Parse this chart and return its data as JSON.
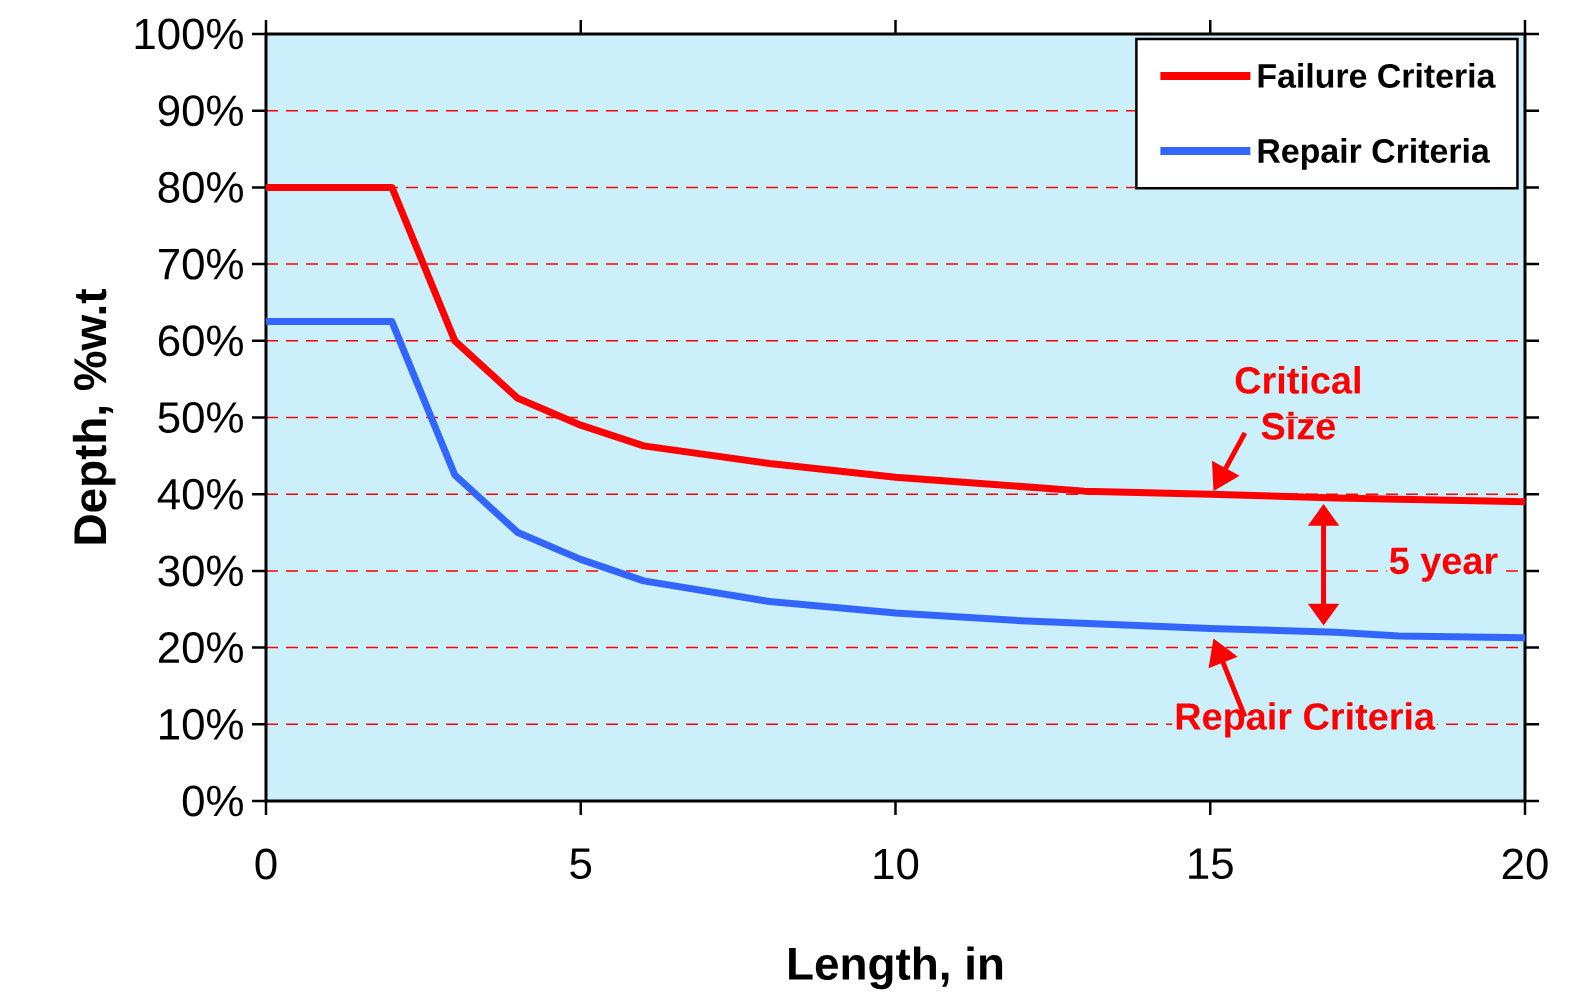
{
  "chart_data": {
    "type": "line",
    "xlabel": "Length, in",
    "ylabel": "Depth, %w.t",
    "xlim": [
      0,
      20
    ],
    "xticks": [
      0,
      5,
      10,
      15,
      20
    ],
    "ylim": [
      0,
      100
    ],
    "yticks": [
      {
        "value": 0,
        "label": "0%"
      },
      {
        "value": 10,
        "label": "10%"
      },
      {
        "value": 20,
        "label": "20%"
      },
      {
        "value": 30,
        "label": "30%"
      },
      {
        "value": 40,
        "label": "40%"
      },
      {
        "value": 50,
        "label": "50%"
      },
      {
        "value": 60,
        "label": "60%"
      },
      {
        "value": 70,
        "label": "70%"
      },
      {
        "value": 80,
        "label": "80%"
      },
      {
        "value": 90,
        "label": "90%"
      },
      {
        "value": 100,
        "label": "100%"
      }
    ],
    "grid": "y",
    "legend": "top right",
    "marker": "none",
    "line_style": "solid",
    "series": [
      {
        "name": "Failure Criteria",
        "color": "#ff0000",
        "x": [
          0,
          2,
          3,
          4,
          5,
          6,
          8,
          10,
          12,
          13,
          15,
          17,
          20
        ],
        "values": [
          80,
          80,
          60,
          52.5,
          49,
          46.3,
          44,
          42.2,
          41,
          40.4,
          40,
          39.5,
          39
        ]
      },
      {
        "name": "Repair Criteria",
        "color": "#3366ff",
        "x": [
          0,
          2,
          3,
          4,
          5,
          6,
          8,
          10,
          12,
          15,
          17,
          18,
          20
        ],
        "values": [
          62.5,
          62.5,
          42.5,
          35,
          31.5,
          28.7,
          26,
          24.5,
          23.5,
          22.5,
          22,
          21.5,
          21.3
        ]
      }
    ],
    "annotations": [
      {
        "text": "Critical Size",
        "x": 15,
        "y": 40
      },
      "5 year",
      {
        "text": "Repair Criteria",
        "x": 15,
        "y": 22
      }
    ]
  }
}
